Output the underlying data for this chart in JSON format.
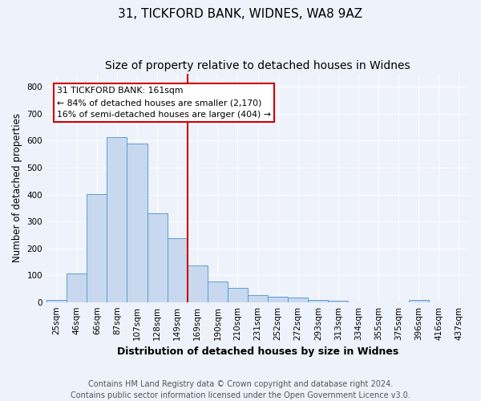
{
  "title": "31, TICKFORD BANK, WIDNES, WA8 9AZ",
  "subtitle": "Size of property relative to detached houses in Widnes",
  "xlabel": "Distribution of detached houses by size in Widnes",
  "ylabel": "Number of detached properties",
  "bar_labels": [
    "25sqm",
    "46sqm",
    "66sqm",
    "87sqm",
    "107sqm",
    "128sqm",
    "149sqm",
    "169sqm",
    "190sqm",
    "210sqm",
    "231sqm",
    "252sqm",
    "272sqm",
    "293sqm",
    "313sqm",
    "334sqm",
    "355sqm",
    "375sqm",
    "396sqm",
    "416sqm",
    "437sqm"
  ],
  "bar_values": [
    7,
    106,
    401,
    614,
    590,
    329,
    237,
    135,
    78,
    52,
    25,
    20,
    17,
    8,
    4,
    0,
    0,
    0,
    8,
    0,
    0
  ],
  "bar_color": "#c8d9ef",
  "bar_edge_color": "#5b9bd5",
  "vline_color": "#cc0000",
  "annotation_lines": [
    "31 TICKFORD BANK: 161sqm",
    "← 84% of detached houses are smaller (2,170)",
    "16% of semi-detached houses are larger (404) →"
  ],
  "annotation_box_color": "white",
  "annotation_box_edge": "#cc0000",
  "ylim": [
    0,
    850
  ],
  "yticks": [
    0,
    100,
    200,
    300,
    400,
    500,
    600,
    700,
    800
  ],
  "footer1": "Contains HM Land Registry data © Crown copyright and database right 2024.",
  "footer2": "Contains public sector information licensed under the Open Government Licence v3.0.",
  "bg_color": "#eef2fa",
  "grid_color": "#ffffff",
  "title_fontsize": 11,
  "xlabel_fontsize": 9,
  "ylabel_fontsize": 8.5,
  "tick_fontsize": 7.5,
  "footer_fontsize": 7,
  "vline_x_index": 6.5
}
